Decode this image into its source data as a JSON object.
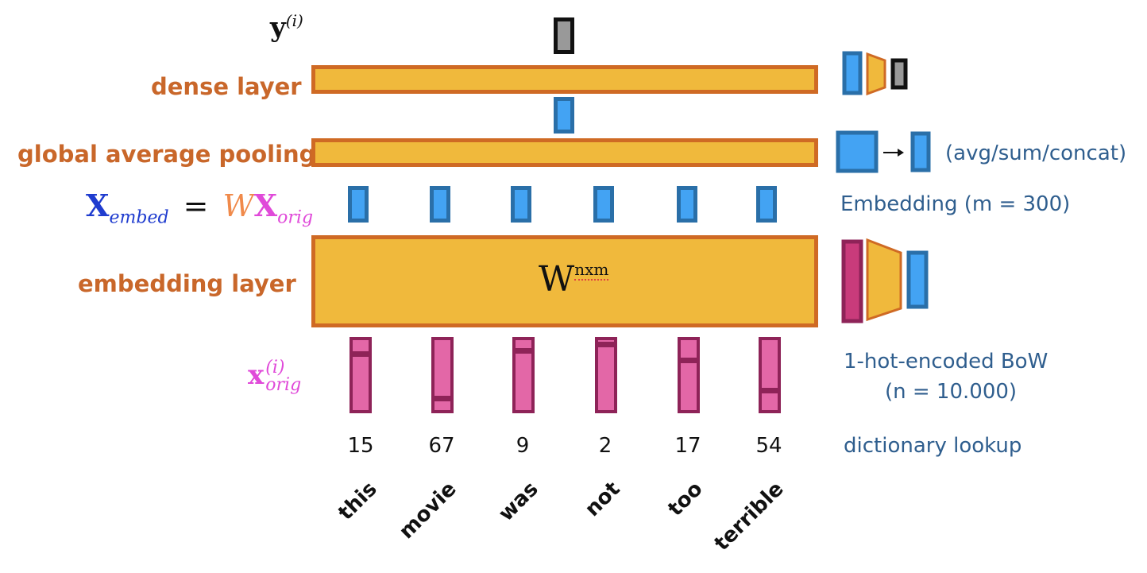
{
  "labels": {
    "output_y": "y",
    "output_sup": "(i)",
    "dense": "dense layer",
    "pooling": "global average pooling",
    "embed_X": "X",
    "embed_sub": "embed",
    "embed_eq": "=",
    "embed_W": "W",
    "embed_X2": "X",
    "embed_sub2": "orig",
    "embedding_layer": "embedding layer",
    "x_orig": "x",
    "x_orig_sup": "(i)",
    "x_orig_sub": "orig"
  },
  "matrix": {
    "base": "W",
    "sup": "nxm"
  },
  "notes": {
    "pooling": "(avg/sum/concat)",
    "embedding": "Embedding (m = 300)",
    "onehot_line1": "1-hot-encoded BoW",
    "onehot_line2": "(n = 10.000)",
    "lookup": "dictionary lookup"
  },
  "tokens": [
    {
      "word": "this",
      "index": "15"
    },
    {
      "word": "movie",
      "index": "67"
    },
    {
      "word": "was",
      "index": "9"
    },
    {
      "word": "not",
      "index": "2"
    },
    {
      "word": "too",
      "index": "17"
    },
    {
      "word": "terrible",
      "index": "54"
    }
  ],
  "colors": {
    "orange": "#c9672a",
    "gold": "#f0b93c",
    "blue": "#43a3f3",
    "pink": "#e367a7",
    "maroon": "#8e2358",
    "magenta": "#e04ad9",
    "navy": "#1f3ccf",
    "note": "#2f5e8e"
  }
}
